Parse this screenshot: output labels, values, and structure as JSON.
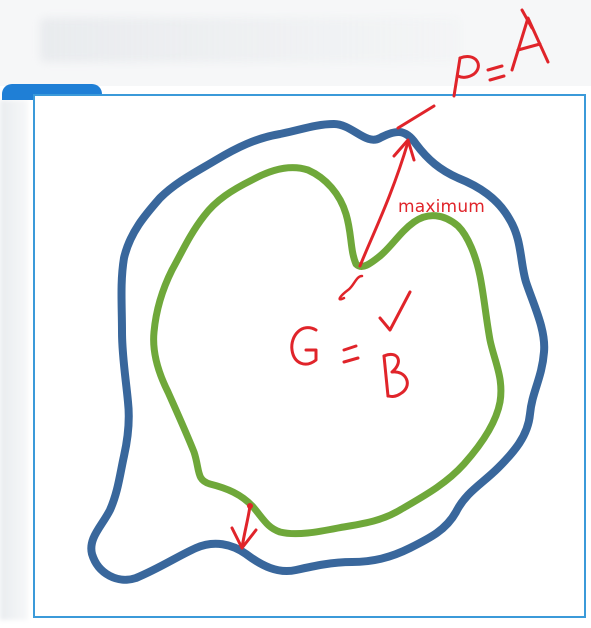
{
  "annotations": {
    "maximum": "maximum",
    "top_formula": "P=A",
    "center_formula": "G=B"
  },
  "colors": {
    "outer_region": "#39679c",
    "inner_region": "#6fa83a",
    "annotation": "#e0242a",
    "frame_border": "#3b9ad9",
    "tab_accent": "#1f7fd6"
  }
}
